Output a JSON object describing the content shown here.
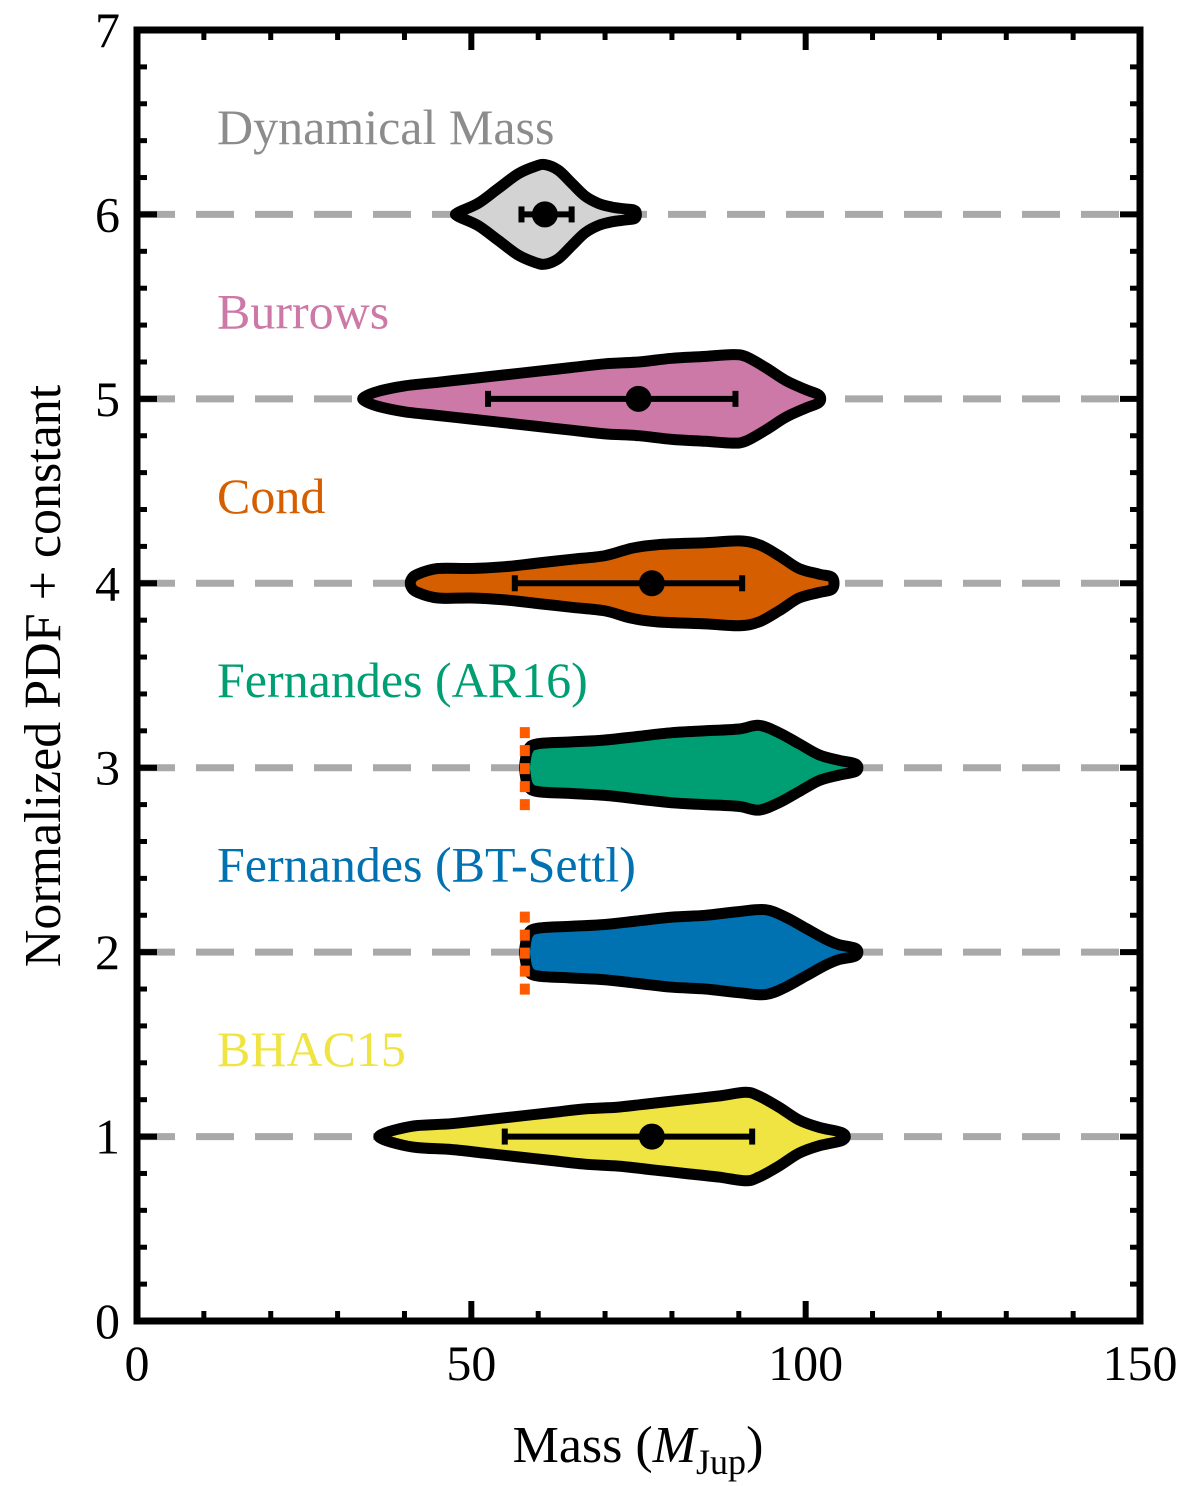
{
  "chart_data": {
    "type": "violin",
    "xlabel_prefix": "Mass (",
    "xlabel_symbol": "M",
    "xlabel_subscript": "Jup",
    "xlabel_suffix": ")",
    "ylabel": "Normalized PDF + constant",
    "xlim": [
      0,
      150
    ],
    "ylim": [
      0,
      7
    ],
    "xticks": [
      0,
      50,
      100,
      150
    ],
    "yticks": [
      0,
      1,
      2,
      3,
      4,
      5,
      6,
      7
    ],
    "x_minor_step": 10,
    "y_minor_step": 0.2,
    "reference_lines": [
      1,
      2,
      3,
      4,
      5,
      6
    ],
    "series": [
      {
        "name": "Dynamical Mass",
        "baseline": 6,
        "color": "#d3d3d3",
        "label_color": "#8c8c8c",
        "median": 61,
        "err_low": 57.5,
        "err_high": 65,
        "profile": [
          [
            48,
            0.01
          ],
          [
            51,
            0.06
          ],
          [
            54,
            0.14
          ],
          [
            57,
            0.22
          ],
          [
            59.5,
            0.26
          ],
          [
            61,
            0.27
          ],
          [
            63,
            0.24
          ],
          [
            65,
            0.17
          ],
          [
            67,
            0.1
          ],
          [
            69,
            0.06
          ],
          [
            71,
            0.04
          ],
          [
            73,
            0.03
          ],
          [
            74.5,
            0.02
          ]
        ]
      },
      {
        "name": "Burrows",
        "baseline": 5,
        "color": "#cc79a7",
        "label_color": "#cc79a7",
        "median": 75,
        "err_low": 52.5,
        "err_high": 89.5,
        "profile": [
          [
            34,
            0.01
          ],
          [
            36,
            0.04
          ],
          [
            40,
            0.07
          ],
          [
            45,
            0.09
          ],
          [
            50,
            0.11
          ],
          [
            55,
            0.13
          ],
          [
            60,
            0.15
          ],
          [
            65,
            0.17
          ],
          [
            70,
            0.19
          ],
          [
            75,
            0.2
          ],
          [
            80,
            0.22
          ],
          [
            85,
            0.23
          ],
          [
            89,
            0.24
          ],
          [
            91,
            0.23
          ],
          [
            94,
            0.17
          ],
          [
            97,
            0.1
          ],
          [
            100,
            0.05
          ],
          [
            102,
            0.02
          ]
        ]
      },
      {
        "name": "Cond",
        "baseline": 4,
        "color": "#d55e00",
        "label_color": "#d55e00",
        "median": 77,
        "err_low": 56.5,
        "err_high": 90.5,
        "profile": [
          [
            41,
            0.02
          ],
          [
            42,
            0.05
          ],
          [
            45,
            0.08
          ],
          [
            50,
            0.08
          ],
          [
            55,
            0.09
          ],
          [
            60,
            0.11
          ],
          [
            65,
            0.13
          ],
          [
            70,
            0.15
          ],
          [
            74,
            0.19
          ],
          [
            78,
            0.21
          ],
          [
            85,
            0.22
          ],
          [
            90,
            0.23
          ],
          [
            93,
            0.21
          ],
          [
            96,
            0.15
          ],
          [
            99,
            0.08
          ],
          [
            102,
            0.05
          ],
          [
            104,
            0.03
          ]
        ]
      },
      {
        "name": "Fernandes (AR16)",
        "baseline": 3,
        "color": "#009e73",
        "label_color": "#009e73",
        "truncation": 58,
        "profile": [
          [
            58,
            0.02
          ],
          [
            58.5,
            0.1
          ],
          [
            60,
            0.13
          ],
          [
            65,
            0.14
          ],
          [
            70,
            0.15
          ],
          [
            75,
            0.17
          ],
          [
            80,
            0.19
          ],
          [
            85,
            0.2
          ],
          [
            90,
            0.21
          ],
          [
            93,
            0.23
          ],
          [
            96,
            0.19
          ],
          [
            99,
            0.13
          ],
          [
            102,
            0.07
          ],
          [
            105,
            0.04
          ],
          [
            107.5,
            0.02
          ]
        ]
      },
      {
        "name": "Fernandes (BT-Settl)",
        "baseline": 2,
        "color": "#0072b2",
        "label_color": "#0072b2",
        "truncation": 58,
        "profile": [
          [
            58,
            0.02
          ],
          [
            58.5,
            0.1
          ],
          [
            60,
            0.13
          ],
          [
            65,
            0.14
          ],
          [
            70,
            0.15
          ],
          [
            75,
            0.17
          ],
          [
            80,
            0.19
          ],
          [
            85,
            0.2
          ],
          [
            90,
            0.22
          ],
          [
            94,
            0.23
          ],
          [
            97,
            0.19
          ],
          [
            100,
            0.13
          ],
          [
            103,
            0.07
          ],
          [
            105,
            0.04
          ],
          [
            107.5,
            0.02
          ]
        ]
      },
      {
        "name": "BHAC15",
        "baseline": 1,
        "color": "#f0e442",
        "label_color": "#f0e442",
        "median": 77,
        "err_low": 55,
        "err_high": 92,
        "profile": [
          [
            36.5,
            0.01
          ],
          [
            39,
            0.04
          ],
          [
            42,
            0.06
          ],
          [
            47,
            0.07
          ],
          [
            52,
            0.09
          ],
          [
            57,
            0.11
          ],
          [
            62,
            0.13
          ],
          [
            67,
            0.15
          ],
          [
            72,
            0.16
          ],
          [
            77,
            0.18
          ],
          [
            82,
            0.2
          ],
          [
            87,
            0.22
          ],
          [
            91,
            0.24
          ],
          [
            93,
            0.22
          ],
          [
            96,
            0.16
          ],
          [
            99,
            0.09
          ],
          [
            102,
            0.05
          ],
          [
            105.5,
            0.02
          ]
        ]
      }
    ],
    "truncation_color": "#ff5a00"
  }
}
